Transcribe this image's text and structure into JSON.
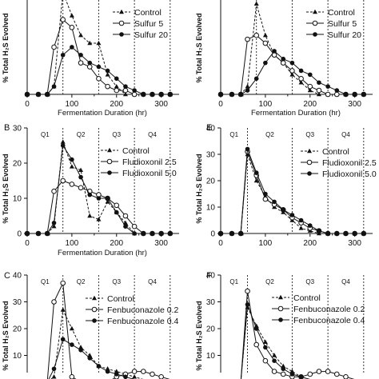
{
  "figure": {
    "panels": [
      {
        "id": "A",
        "letter": "",
        "ylabel": "% Total H₂S Evolved",
        "xlabel": "Fermentation Duration (hr)",
        "quartile_labels": [],
        "show_xaxis_title": true
      },
      {
        "id": "D",
        "letter": "",
        "ylabel": "% Total H₂S Evolved",
        "xlabel": "Fermentation Duration (hr)",
        "quartile_labels": [],
        "show_xaxis_title": true
      },
      {
        "id": "B",
        "letter": "B",
        "ylabel": "% Total H₂S Evolved",
        "xlabel": "Fermentation Duration (hr)",
        "quartile_labels": [
          "Q1",
          "Q2",
          "Q3",
          "Q4"
        ],
        "show_xaxis_title": true
      },
      {
        "id": "E",
        "letter": "E",
        "ylabel": "% Total H₂S Evolved",
        "xlabel": "",
        "quartile_labels": [
          "Q1",
          "Q2",
          "Q3",
          "Q4"
        ],
        "show_xaxis_title": false
      },
      {
        "id": "C",
        "letter": "C",
        "ylabel": "% Total H₂S Evolved",
        "xlabel": "",
        "quartile_labels": [
          "Q1",
          "Q2",
          "Q3",
          "Q4"
        ],
        "show_xaxis_title": false
      },
      {
        "id": "F",
        "letter": "F",
        "ylabel": "% Total H₂S Evolved",
        "xlabel": "",
        "quartile_labels": [
          "Q1",
          "Q2",
          "Q3",
          "Q4"
        ],
        "show_xaxis_title": false
      }
    ]
  },
  "chart_data": [
    {
      "panel": "A",
      "type": "line",
      "title": "",
      "xlabel": "Fermentation Duration (hr)",
      "ylabel": "% Total H₂S Evolved",
      "xlim": [
        0,
        340
      ],
      "ylim": [
        0,
        25
      ],
      "xticks": [
        0,
        100,
        200,
        300
      ],
      "xticklabels": [
        "0",
        "100",
        "200",
        "300"
      ],
      "yticks": [],
      "quartile_lines": [
        80,
        160,
        240,
        320
      ],
      "legend_position": "top-right",
      "series": [
        {
          "name": "Control",
          "marker": "triangle",
          "dashed": true,
          "x": [
            0,
            25,
            45,
            60,
            80,
            100,
            120,
            140,
            160,
            180,
            200,
            220,
            240,
            260,
            280,
            300,
            320
          ],
          "y": [
            0,
            0,
            0,
            2,
            26,
            20,
            15,
            13,
            13,
            5,
            2,
            0,
            0,
            0,
            0,
            0,
            0
          ]
        },
        {
          "name": "Sulfur 5",
          "marker": "circle-open",
          "dashed": false,
          "x": [
            0,
            25,
            45,
            60,
            80,
            100,
            120,
            140,
            160,
            180,
            200,
            220,
            240,
            260,
            280,
            300,
            320
          ],
          "y": [
            0,
            0,
            0,
            12,
            19,
            17,
            8,
            7,
            4,
            2,
            1,
            1,
            0,
            0,
            0,
            0,
            0
          ]
        },
        {
          "name": "Sulfur 20",
          "marker": "circle-filled",
          "dashed": false,
          "x": [
            0,
            25,
            45,
            60,
            80,
            100,
            120,
            140,
            160,
            180,
            200,
            220,
            240,
            260,
            280,
            300,
            320
          ],
          "y": [
            0,
            0,
            0,
            2,
            10,
            12,
            10,
            8,
            7,
            6,
            4,
            2,
            1,
            0,
            0,
            0,
            0
          ]
        }
      ]
    },
    {
      "panel": "D",
      "type": "line",
      "title": "",
      "xlabel": "Fermentation Duration (hr)",
      "ylabel": "% Total H₂S Evolved",
      "xlim": [
        0,
        340
      ],
      "ylim": [
        0,
        25
      ],
      "xticks": [
        0,
        100,
        200,
        300
      ],
      "xticklabels": [
        "0",
        "100",
        "200",
        "300"
      ],
      "yticks": [],
      "quartile_lines": [
        80,
        160,
        240,
        320
      ],
      "legend_position": "top-right",
      "series": [
        {
          "name": "Control",
          "marker": "triangle",
          "dashed": true,
          "x": [
            0,
            25,
            45,
            60,
            80,
            100,
            120,
            140,
            160,
            180,
            200,
            220,
            240,
            260,
            280,
            300,
            320
          ],
          "y": [
            0,
            0,
            0,
            2,
            23,
            15,
            10,
            8,
            5,
            3,
            1,
            0,
            0,
            0,
            0,
            0,
            0
          ]
        },
        {
          "name": "Sulfur 5",
          "marker": "circle-open",
          "dashed": false,
          "x": [
            0,
            25,
            45,
            60,
            80,
            100,
            120,
            140,
            160,
            180,
            200,
            220,
            240,
            260,
            280,
            300,
            320
          ],
          "y": [
            0,
            0,
            0,
            14,
            15,
            13,
            10,
            8,
            6,
            4,
            2,
            1,
            0,
            0,
            0,
            0,
            0
          ]
        },
        {
          "name": "Sulfur 20",
          "marker": "circle-filled",
          "dashed": false,
          "x": [
            0,
            25,
            45,
            60,
            80,
            100,
            120,
            140,
            160,
            180,
            200,
            220,
            240,
            260,
            280,
            300,
            320
          ],
          "y": [
            0,
            0,
            0,
            1,
            4,
            8,
            11,
            9,
            8,
            6,
            5,
            3,
            2,
            1,
            0,
            0,
            0
          ]
        }
      ]
    },
    {
      "panel": "B",
      "type": "line",
      "title": "",
      "xlabel": "Fermentation Duration (hr)",
      "ylabel": "% Total H₂S Evolved",
      "xlim": [
        0,
        340
      ],
      "ylim": [
        0,
        30
      ],
      "xticks": [
        0,
        100,
        200,
        300
      ],
      "xticklabels": [
        "0",
        "100",
        "200",
        "300"
      ],
      "yticks": [
        0,
        10,
        20,
        30
      ],
      "yticklabels": [
        "0",
        "10",
        "20",
        "30"
      ],
      "quartile_lines": [
        80,
        160,
        240,
        320
      ],
      "legend_position": "top-right",
      "series": [
        {
          "name": "Control",
          "marker": "triangle",
          "dashed": true,
          "x": [
            0,
            25,
            45,
            60,
            80,
            100,
            120,
            140,
            160,
            180,
            200,
            220,
            240,
            260,
            280,
            300,
            320
          ],
          "y": [
            0,
            0,
            0,
            2,
            26,
            19,
            18,
            5,
            4,
            9,
            6,
            3,
            0,
            0,
            0,
            0,
            0
          ]
        },
        {
          "name": "Fludioxonil 2.5",
          "marker": "circle-open",
          "dashed": false,
          "x": [
            0,
            25,
            45,
            60,
            80,
            100,
            120,
            140,
            160,
            180,
            200,
            220,
            240,
            260,
            280,
            300,
            320
          ],
          "y": [
            0,
            0,
            0,
            12,
            15,
            14,
            13,
            12,
            11,
            10,
            8,
            5,
            2,
            0,
            0,
            0,
            0
          ]
        },
        {
          "name": "Fludioxonil 5.0",
          "marker": "circle-filled",
          "dashed": false,
          "x": [
            0,
            25,
            45,
            60,
            80,
            100,
            120,
            140,
            160,
            180,
            200,
            220,
            240,
            260,
            280,
            300,
            320
          ],
          "y": [
            0,
            0,
            0,
            3,
            25,
            21,
            16,
            11,
            10,
            10,
            6,
            2,
            0,
            0,
            0,
            0,
            0
          ]
        }
      ]
    },
    {
      "panel": "E",
      "type": "line",
      "title": "",
      "xlabel": "",
      "ylabel": "% Total H₂S Evolved",
      "xlim": [
        0,
        340
      ],
      "ylim": [
        0,
        40
      ],
      "xticks": [
        0,
        100,
        200,
        300
      ],
      "xticklabels": [
        "0",
        "100",
        "200",
        "300"
      ],
      "yticks": [
        0,
        10,
        20,
        30,
        40
      ],
      "yticklabels": [
        "0",
        "10",
        "20",
        "30",
        "40"
      ],
      "quartile_lines": [
        60,
        160,
        240,
        320
      ],
      "legend_position": "top-right",
      "series": [
        {
          "name": "Control",
          "marker": "triangle",
          "dashed": true,
          "x": [
            0,
            25,
            45,
            60,
            80,
            100,
            120,
            140,
            160,
            180,
            200,
            220,
            240,
            260,
            280,
            300,
            320
          ],
          "y": [
            0,
            0,
            0,
            30,
            20,
            14,
            10,
            8,
            5,
            2,
            1,
            0,
            0,
            0,
            0,
            0,
            0
          ]
        },
        {
          "name": "Fludioxonil 2.5",
          "marker": "circle-open",
          "dashed": false,
          "x": [
            0,
            25,
            45,
            60,
            80,
            100,
            120,
            140,
            160,
            180,
            200,
            220,
            240,
            260,
            280,
            300,
            320
          ],
          "y": [
            0,
            0,
            0,
            31,
            22,
            13,
            11,
            9,
            6,
            4,
            2,
            1,
            0,
            0,
            0,
            0,
            0
          ]
        },
        {
          "name": "Fludioxonil 5.0",
          "marker": "circle-filled",
          "dashed": false,
          "x": [
            0,
            25,
            45,
            60,
            80,
            100,
            120,
            140,
            160,
            180,
            200,
            220,
            240,
            260,
            280,
            300,
            320
          ],
          "y": [
            0,
            0,
            0,
            32,
            23,
            15,
            12,
            9,
            7,
            5,
            3,
            1,
            0,
            0,
            0,
            0,
            0
          ]
        }
      ]
    },
    {
      "panel": "C",
      "type": "line",
      "title": "",
      "xlabel": "",
      "ylabel": "% Total H₂S Evolved",
      "xlim": [
        0,
        340
      ],
      "ylim": [
        0,
        40
      ],
      "xticks": [],
      "yticks": [
        0,
        10,
        20,
        30,
        40
      ],
      "yticklabels": [
        "0",
        "10",
        "20",
        "30",
        "40"
      ],
      "quartile_lines": [
        80,
        160,
        240,
        320
      ],
      "legend_position": "top-right",
      "series": [
        {
          "name": "Control",
          "marker": "triangle",
          "dashed": true,
          "x": [
            0,
            25,
            45,
            60,
            80,
            100,
            120,
            140,
            160,
            180,
            200,
            220,
            240,
            260,
            280,
            300,
            320
          ],
          "y": [
            0,
            0,
            0,
            2,
            27,
            20,
            13,
            10,
            6,
            5,
            4,
            3,
            2,
            1,
            0,
            0,
            0
          ]
        },
        {
          "name": "Fenbuconazole 0.2",
          "marker": "circle-open",
          "dashed": false,
          "x": [
            0,
            25,
            45,
            60,
            80,
            100,
            120,
            140,
            160,
            180,
            200,
            220,
            240,
            260,
            280,
            300,
            320
          ],
          "y": [
            0,
            0,
            0,
            30,
            37,
            2,
            0,
            0,
            0,
            0,
            2,
            3,
            4,
            4,
            3,
            2,
            1
          ]
        },
        {
          "name": "Fenbuconazole 0.4",
          "marker": "circle-filled",
          "dashed": false,
          "x": [
            0,
            25,
            45,
            60,
            80,
            100,
            120,
            140,
            160,
            180,
            200,
            220,
            240,
            260,
            280,
            300,
            320
          ],
          "y": [
            0,
            0,
            0,
            5,
            16,
            14,
            12,
            9,
            6,
            4,
            3,
            2,
            1,
            0,
            0,
            0,
            0
          ]
        }
      ]
    },
    {
      "panel": "F",
      "type": "line",
      "title": "",
      "xlabel": "",
      "ylabel": "% Total H₂S Evolved",
      "xlim": [
        0,
        340
      ],
      "ylim": [
        0,
        40
      ],
      "xticks": [],
      "yticks": [
        0,
        10,
        20,
        30,
        40
      ],
      "yticklabels": [
        "0",
        "10",
        "20",
        "30",
        "40"
      ],
      "quartile_lines": [
        60,
        160,
        240,
        320
      ],
      "legend_position": "top-right",
      "series": [
        {
          "name": "Control",
          "marker": "triangle",
          "dashed": true,
          "x": [
            0,
            25,
            45,
            60,
            80,
            100,
            120,
            140,
            160,
            180,
            200,
            220,
            240,
            260,
            280,
            300,
            320
          ],
          "y": [
            0,
            0,
            0,
            28,
            21,
            15,
            10,
            6,
            4,
            2,
            1,
            0,
            0,
            0,
            0,
            0,
            0
          ]
        },
        {
          "name": "Fenbuconazole 0.2",
          "marker": "circle-open",
          "dashed": false,
          "x": [
            0,
            25,
            45,
            60,
            80,
            100,
            120,
            140,
            160,
            180,
            200,
            220,
            240,
            260,
            280,
            300,
            320
          ],
          "y": [
            0,
            0,
            0,
            34,
            14,
            8,
            4,
            3,
            2,
            2,
            3,
            4,
            4,
            3,
            2,
            1,
            1
          ]
        },
        {
          "name": "Fenbuconazole 0.4",
          "marker": "circle-filled",
          "dashed": false,
          "x": [
            0,
            25,
            45,
            60,
            80,
            100,
            120,
            140,
            160,
            180,
            200,
            220,
            240,
            260,
            280,
            300,
            320
          ],
          "y": [
            0,
            0,
            0,
            29,
            20,
            13,
            8,
            5,
            3,
            2,
            1,
            1,
            0,
            0,
            0,
            0,
            0
          ]
        }
      ]
    }
  ]
}
